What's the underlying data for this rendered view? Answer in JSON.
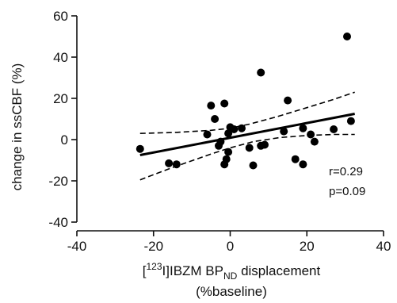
{
  "chart_data": {
    "type": "scatter",
    "xlim": [
      -40,
      40
    ],
    "ylim": [
      -40,
      60
    ],
    "xticks": [
      -40,
      -20,
      0,
      20,
      40
    ],
    "yticks": [
      -40,
      -20,
      0,
      20,
      40,
      60
    ],
    "ylabel": "change in ssCBF (%)",
    "xlabel": {
      "bracket_open": "[",
      "isotope": "123",
      "compound": "I]IBZM BP",
      "subscript": "ND",
      "rest": " displacement",
      "line2": "(%baseline)"
    },
    "annotations": [
      "r=0.29",
      "p=0.09"
    ],
    "points": [
      {
        "x": -23.5,
        "y": -4.5
      },
      {
        "x": -16,
        "y": -11.5
      },
      {
        "x": -14,
        "y": -12
      },
      {
        "x": -6,
        "y": 2.5
      },
      {
        "x": -5,
        "y": 16.5
      },
      {
        "x": -4,
        "y": 10
      },
      {
        "x": -3,
        "y": -3
      },
      {
        "x": -2.5,
        "y": -1
      },
      {
        "x": -1.5,
        "y": 17.5
      },
      {
        "x": -1.5,
        "y": -12
      },
      {
        "x": -1,
        "y": -9.5
      },
      {
        "x": -0.5,
        "y": 3
      },
      {
        "x": 0,
        "y": 6
      },
      {
        "x": -0.5,
        "y": -6
      },
      {
        "x": 1,
        "y": 5
      },
      {
        "x": 3,
        "y": 5.5
      },
      {
        "x": 5,
        "y": -4
      },
      {
        "x": 6,
        "y": -12.5
      },
      {
        "x": 8,
        "y": 32.5
      },
      {
        "x": 8,
        "y": -3
      },
      {
        "x": 9,
        "y": -2.5
      },
      {
        "x": 14,
        "y": 4
      },
      {
        "x": 15,
        "y": 19
      },
      {
        "x": 17,
        "y": -9.5
      },
      {
        "x": 19,
        "y": -12
      },
      {
        "x": 19,
        "y": 5.5
      },
      {
        "x": 21,
        "y": 2.5
      },
      {
        "x": 22,
        "y": -1
      },
      {
        "x": 27,
        "y": 5
      },
      {
        "x": 30.5,
        "y": 50
      },
      {
        "x": 31.5,
        "y": 9
      }
    ],
    "fit_line": {
      "x": [
        -23.5,
        32.5
      ],
      "y": [
        -7.5,
        12.5
      ]
    },
    "ci_upper": {
      "x": [
        -23.5,
        -14,
        -5,
        0,
        5,
        12,
        20,
        27,
        32.5
      ],
      "y": [
        3,
        3.5,
        4.5,
        5.5,
        7.5,
        11,
        15.5,
        19.5,
        23
      ]
    },
    "ci_lower": {
      "x": [
        -23.5,
        -15,
        -5,
        0,
        6,
        13,
        20,
        27,
        32.5
      ],
      "y": [
        -19.5,
        -13.5,
        -7,
        -4,
        -1,
        1,
        2,
        2.5,
        2.5
      ]
    }
  }
}
